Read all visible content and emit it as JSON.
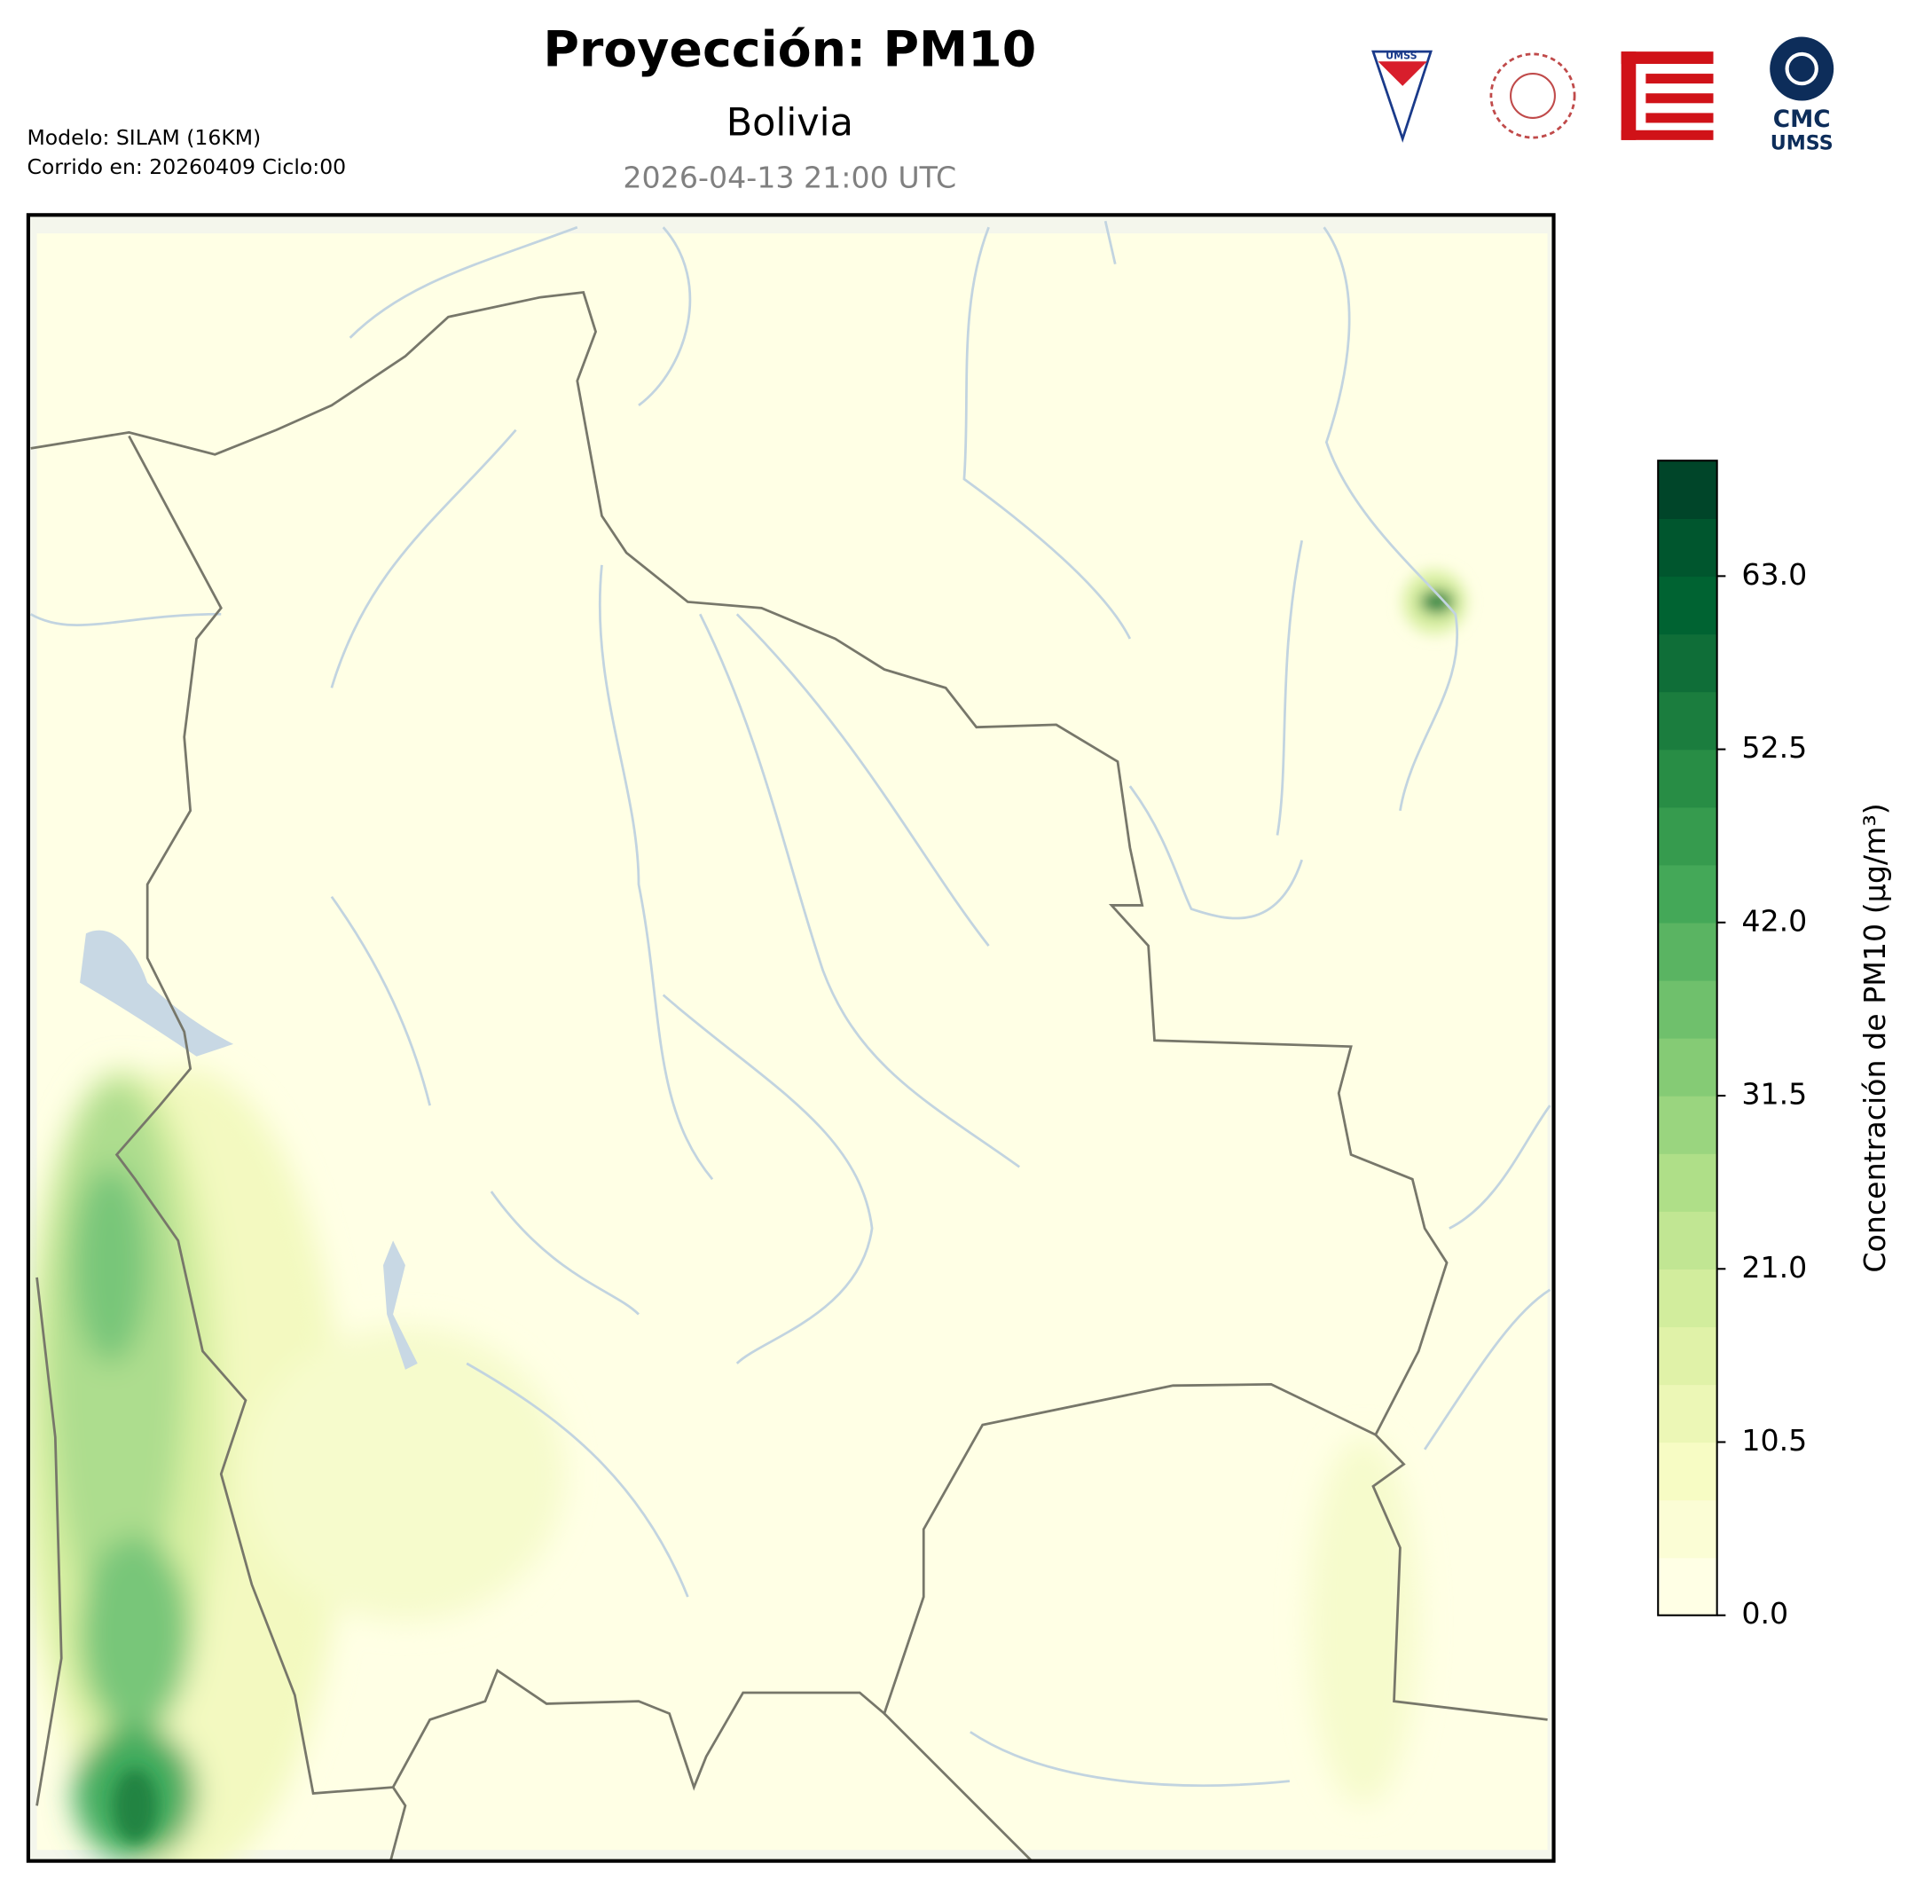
{
  "header": {
    "title": "Proyección: PM10",
    "subtitle": "Bolivia",
    "datetime": "2026-04-13 21:00 UTC",
    "model": "Modelo: SILAM (16KM)",
    "run": "Corrido en: 20260409 Ciclo:00"
  },
  "logos": [
    "UMSS",
    "CMC",
    "UMSS"
  ],
  "colorbar": {
    "label": "Concentración de PM10 (µg/m³)",
    "lim": [
      0,
      70
    ],
    "ticks": [
      {
        "value": 0,
        "label": "0.0"
      },
      10.5,
      {
        "value": 21,
        "label": "21.0"
      },
      31.5,
      {
        "value": 42,
        "label": "42.0"
      },
      52.5,
      {
        "value": 63,
        "label": "63.0"
      }
    ],
    "colors": [
      "#ffffe5",
      "#fbfdd5",
      "#f7fcc4",
      "#ecf7b6",
      "#e0f2a8",
      "#d2ed9d",
      "#c1e693",
      "#afdf88",
      "#9ad57f",
      "#85cb75",
      "#6fc06c",
      "#5ab462",
      "#44a858",
      "#369b4e",
      "#288d45",
      "#1b7d3e",
      "#0f6e38",
      "#006332",
      "#00562e",
      "#004529"
    ]
  }
}
